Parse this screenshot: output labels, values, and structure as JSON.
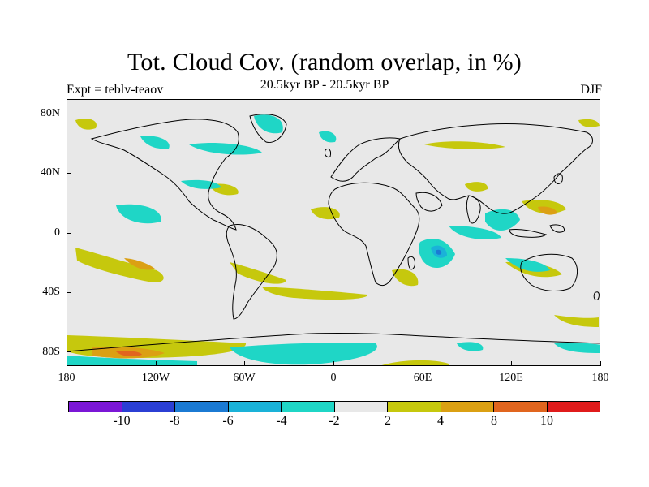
{
  "title": "Tot. Cloud Cov. (random overlap, in %)",
  "subtitle": "20.5kyr BP - 20.5kyr BP",
  "expt_label": "Expt = teblv-teaov",
  "season": "DJF",
  "y_ticks": [
    "80N",
    "40N",
    "0",
    "40S",
    "80S"
  ],
  "x_ticks": [
    "180",
    "120W",
    "60W",
    "0",
    "60E",
    "120E",
    "180"
  ],
  "colorbar": {
    "colors": [
      "#7b17d6",
      "#2b3fd4",
      "#1b7ad3",
      "#1ab2d8",
      "#1fd6c6",
      "#e8e8e8",
      "#c6c80d",
      "#dba013",
      "#e1651e",
      "#e01b1b"
    ],
    "labels": [
      "-10",
      "-8",
      "-6",
      "-4",
      "-2",
      "2",
      "4",
      "8",
      "10"
    ]
  },
  "chart_data": {
    "type": "map-contour",
    "projection": "cylindrical equidistant",
    "variable": "Total cloud cover difference (random overlap, %)",
    "lon_range": [
      -180,
      180
    ],
    "lat_range": [
      -90,
      90
    ],
    "levels": [
      -10,
      -8,
      -6,
      -4,
      -2,
      2,
      4,
      8,
      10
    ],
    "anomaly_regions": [
      {
        "name": "north-atlantic-cyan",
        "class": -4,
        "lon": [
          -60,
          -10
        ],
        "lat": [
          55,
          80
        ]
      },
      {
        "name": "north-pacific-cyan",
        "class": -4,
        "lon": [
          -170,
          -110
        ],
        "lat": [
          55,
          65
        ]
      },
      {
        "name": "tropical-east-pacific-cyan",
        "class": -4,
        "lon": [
          -145,
          -120
        ],
        "lat": [
          5,
          20
        ]
      },
      {
        "name": "south-pacific-orange",
        "class": 4,
        "lon": [
          -150,
          -125
        ],
        "lat": [
          -25,
          -15
        ]
      },
      {
        "name": "south-indian-blue",
        "class": -6,
        "lon": [
          55,
          75
        ],
        "lat": [
          -25,
          -10
        ]
      },
      {
        "name": "west-pacific-orange",
        "class": 4,
        "lon": [
          135,
          160
        ],
        "lat": [
          10,
          20
        ]
      },
      {
        "name": "south-china-sea-cyan",
        "class": -4,
        "lon": [
          100,
          125
        ],
        "lat": [
          5,
          20
        ]
      },
      {
        "name": "southern-ocean-orange",
        "class": 4,
        "lon": [
          -170,
          -120
        ],
        "lat": [
          -85,
          -75
        ]
      },
      {
        "name": "antarctic-margin-cyan",
        "class": -4,
        "lon": [
          -80,
          60
        ],
        "lat": [
          -90,
          -75
        ]
      }
    ]
  }
}
